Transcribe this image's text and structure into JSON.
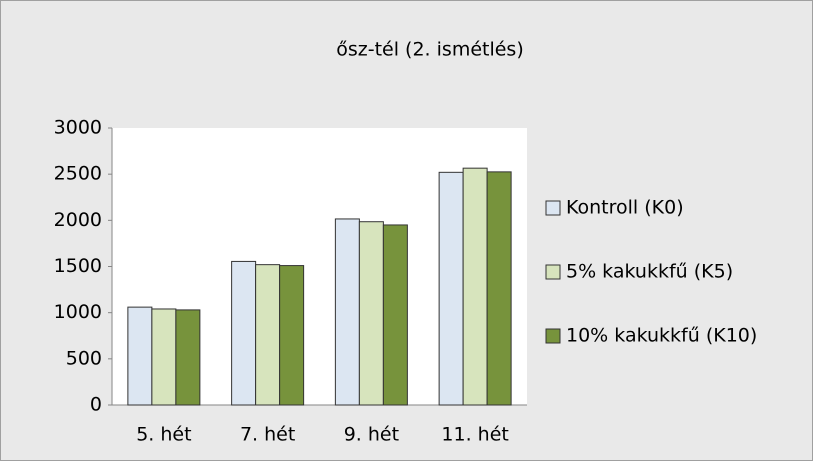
{
  "chart_data": {
    "type": "bar",
    "title": "ősz-tél (2. ismétlés)",
    "categories": [
      "5. hét",
      "7. hét",
      "9. hét",
      "11. hét"
    ],
    "series": [
      {
        "name": "Kontroll (K0)",
        "color": "#dce6f2",
        "values": [
          1060,
          1555,
          2015,
          2520
        ]
      },
      {
        "name": "5% kakukkfű (K5)",
        "color": "#d7e4bd",
        "values": [
          1040,
          1520,
          1985,
          2565
        ]
      },
      {
        "name": "10% kakukkfű (K10)",
        "color": "#77933c",
        "values": [
          1030,
          1510,
          1950,
          2525
        ]
      }
    ],
    "ylim": [
      0,
      3000
    ],
    "yticks": [
      0,
      500,
      1000,
      1500,
      2000,
      2500,
      3000
    ],
    "grid": false,
    "legend": "right"
  }
}
